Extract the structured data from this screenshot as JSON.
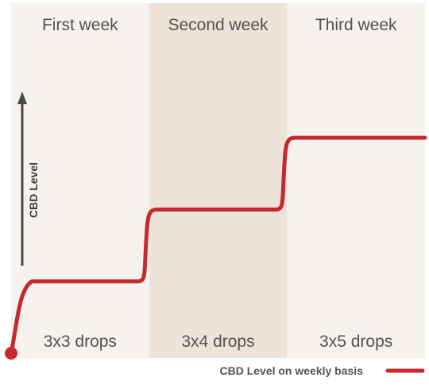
{
  "chart_data": {
    "type": "line",
    "title": "",
    "ylabel": "CBD Level",
    "xlabel": "",
    "categories": [
      "First week",
      "Second week",
      "Third week"
    ],
    "dose_labels": [
      "3x3 drops",
      "3x4 drops",
      "3x5 drops"
    ],
    "series": [
      {
        "name": "CBD Level on weekly basis",
        "values": [
          1,
          2,
          3
        ]
      }
    ],
    "y_start": 0,
    "ylim": [
      0,
      3.5
    ],
    "grid": false,
    "legend_position": "bottom-right",
    "y_tick_labels": false,
    "colors": {
      "line": "#c42a2f",
      "band_light": "#f6f3ee",
      "band_dark": "#ede3d8",
      "axis_arrow": "#4a4a4a",
      "text": "#55524d"
    }
  }
}
